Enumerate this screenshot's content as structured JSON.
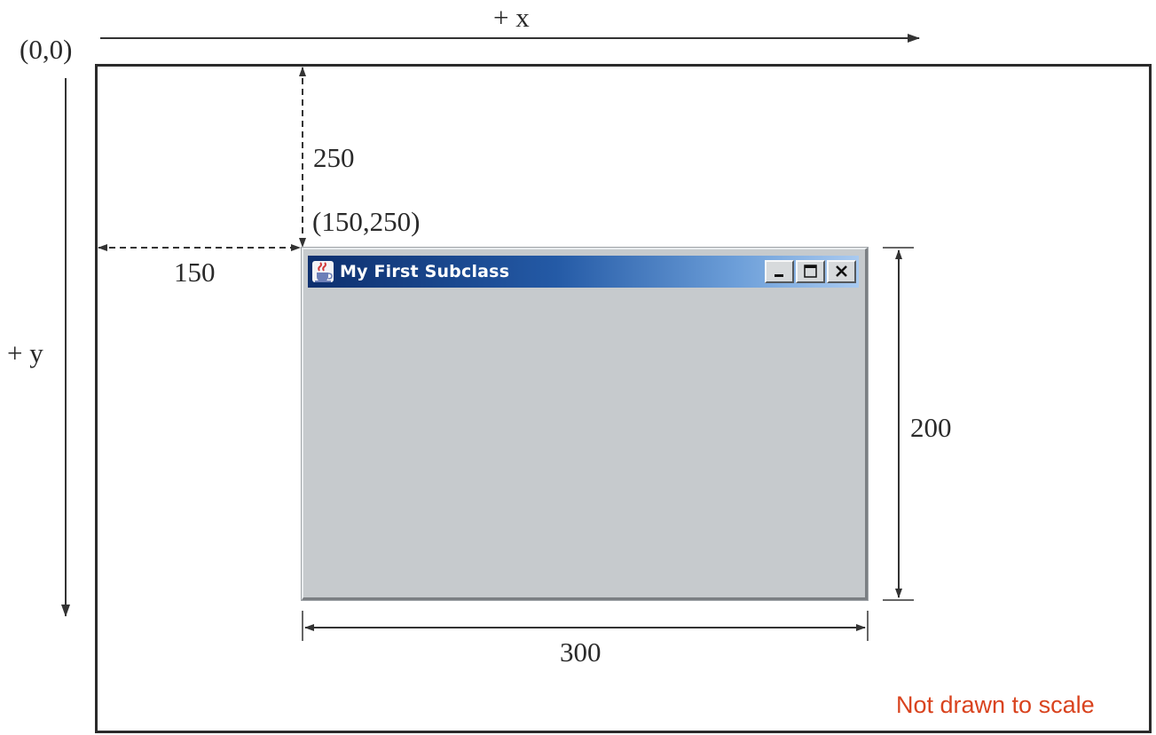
{
  "labels": {
    "origin": "(0,0)",
    "x_axis": "+ x",
    "y_axis": "+ y",
    "top_offset": "250",
    "left_offset": "150",
    "corner_point": "(150,250)",
    "window_height": "200",
    "window_width": "300"
  },
  "window": {
    "title": "My First Subclass",
    "icon": "java-cup-icon",
    "controls": [
      "minimize-icon",
      "maximize-icon",
      "close-icon"
    ]
  },
  "note": "Not drawn to scale",
  "colors": {
    "note": "#d9431e",
    "titlebar_start": "#0d2f6e",
    "titlebar_end": "#a9caf0",
    "window_body": "#c6cacd",
    "lines": "#2b2b2b"
  }
}
